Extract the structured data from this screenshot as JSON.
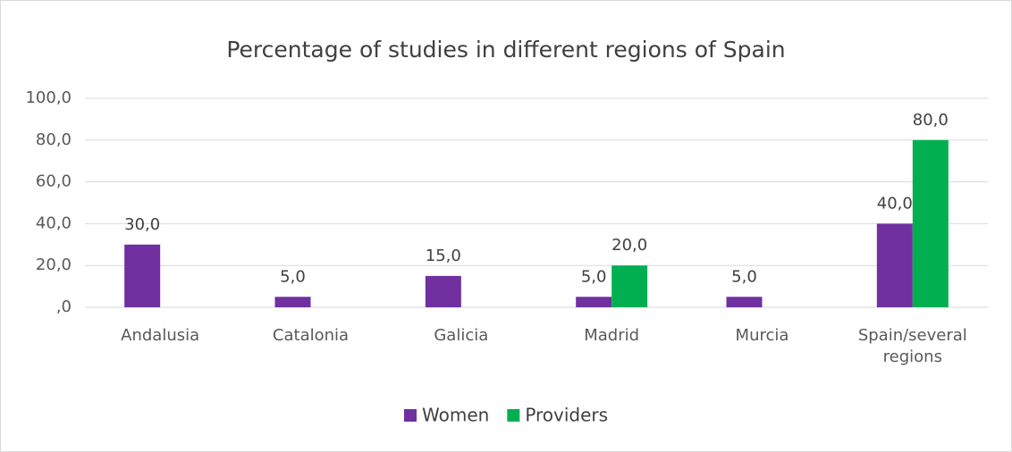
{
  "chart_data": {
    "type": "bar",
    "title": "Percentage of studies in different regions of Spain",
    "categories": [
      "Andalusia",
      "Catalonia",
      "Galicia",
      "Madrid",
      "Murcia",
      "Spain/several regions"
    ],
    "series": [
      {
        "name": "Women",
        "color": "#7030a0",
        "values": [
          30,
          5,
          15,
          5,
          5,
          40
        ],
        "value_labels": [
          "30,0",
          "5,0",
          "15,0",
          "5,0",
          "5,0",
          "40,0"
        ]
      },
      {
        "name": "Providers",
        "color": "#00b050",
        "values": [
          null,
          null,
          null,
          20,
          null,
          80
        ],
        "value_labels": [
          null,
          null,
          null,
          "20,0",
          null,
          "80,0"
        ]
      }
    ],
    "ylim": [
      0,
      100
    ],
    "yticks": [
      {
        "value": 0,
        "label": ",0"
      },
      {
        "value": 20,
        "label": "20,0"
      },
      {
        "value": 40,
        "label": "40,0"
      },
      {
        "value": 60,
        "label": "60,0"
      },
      {
        "value": 80,
        "label": "80,0"
      },
      {
        "value": 100,
        "label": "100,0"
      }
    ],
    "grid": true,
    "legend": "bottom"
  }
}
